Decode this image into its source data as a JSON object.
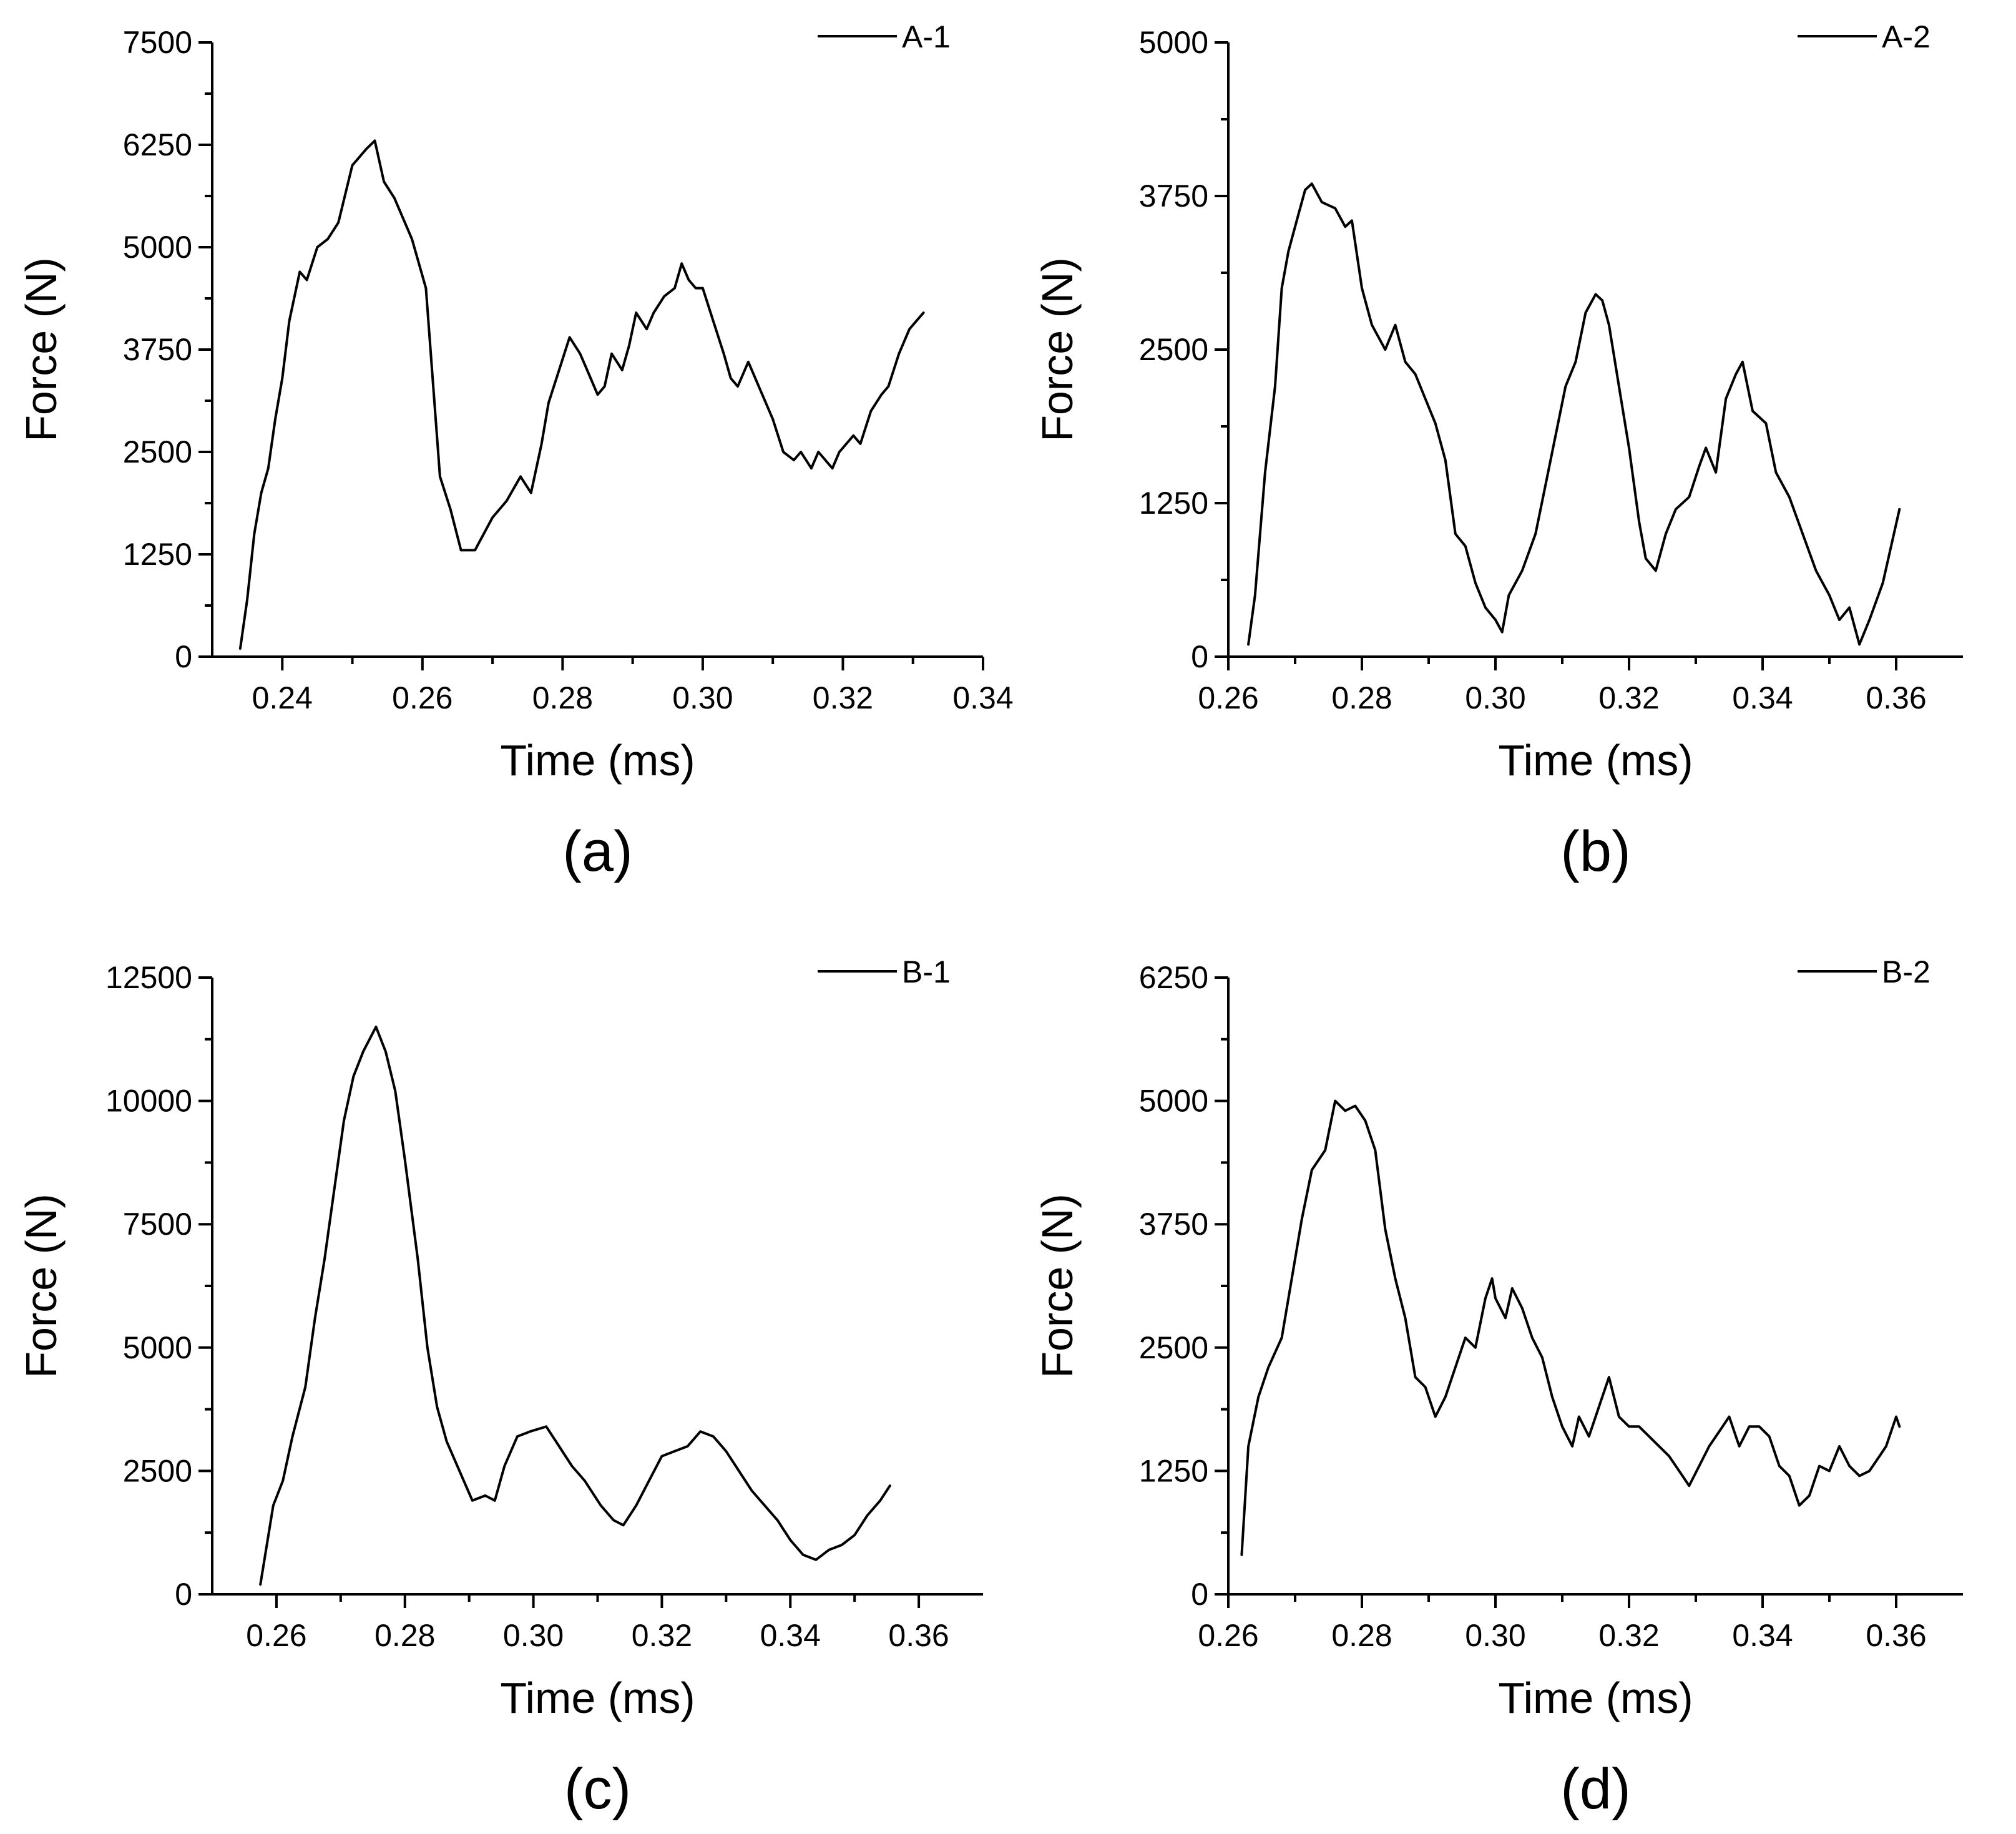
{
  "figure": {
    "background": "#ffffff",
    "line_color": "#000000"
  },
  "chart_data": [
    {
      "id": "a",
      "type": "line",
      "panel_label": "(a)",
      "xlabel": "Time (ms)",
      "ylabel": "Force (N)",
      "xlim": [
        0.23,
        0.34
      ],
      "ylim": [
        0,
        7500
      ],
      "xticks": [
        0.24,
        0.26,
        0.28,
        0.3,
        0.32,
        0.34
      ],
      "xtick_labels": [
        "0.24",
        "0.26",
        "0.28",
        "0.30",
        "0.32",
        "0.34"
      ],
      "yticks": [
        0,
        1250,
        2500,
        3750,
        5000,
        6250,
        7500
      ],
      "ytick_labels": [
        "0",
        "1250",
        "2500",
        "3750",
        "5000",
        "6250",
        "7500"
      ],
      "legend": {
        "label": "A-1",
        "position": "top-right"
      },
      "series": [
        {
          "name": "A-1",
          "x": [
            0.234,
            0.235,
            0.236,
            0.237,
            0.238,
            0.239,
            0.24,
            0.241,
            0.2425,
            0.2435,
            0.245,
            0.2465,
            0.248,
            0.25,
            0.251,
            0.252,
            0.2532,
            0.2545,
            0.256,
            0.2585,
            0.2605,
            0.2625,
            0.264,
            0.2655,
            0.2675,
            0.27,
            0.272,
            0.274,
            0.2755,
            0.277,
            0.278,
            0.2795,
            0.281,
            0.2825,
            0.2835,
            0.285,
            0.286,
            0.287,
            0.2885,
            0.2895,
            0.2905,
            0.292,
            0.293,
            0.2945,
            0.296,
            0.297,
            0.298,
            0.299,
            0.3,
            0.3015,
            0.303,
            0.304,
            0.305,
            0.3065,
            0.308,
            0.31,
            0.3115,
            0.313,
            0.314,
            0.3155,
            0.3165,
            0.3185,
            0.3195,
            0.3215,
            0.3225,
            0.324,
            0.3255,
            0.3265,
            0.328,
            0.3295,
            0.3305,
            0.3315
          ],
          "y": [
            100,
            700,
            1500,
            2000,
            2300,
            2900,
            3400,
            4100,
            4700,
            4600,
            5000,
            5100,
            5300,
            6000,
            6100,
            6200,
            6300,
            5800,
            5600,
            5100,
            4500,
            2200,
            1800,
            1300,
            1300,
            1700,
            1900,
            2200,
            2000,
            2600,
            3100,
            3500,
            3900,
            3700,
            3500,
            3200,
            3300,
            3700,
            3500,
            3800,
            4200,
            4000,
            4200,
            4400,
            4500,
            4800,
            4600,
            4500,
            4500,
            4100,
            3700,
            3400,
            3300,
            3600,
            3300,
            2900,
            2500,
            2400,
            2500,
            2300,
            2500,
            2300,
            2500,
            2700,
            2600,
            3000,
            3200,
            3300,
            3700,
            4000,
            4100,
            4200
          ]
        }
      ]
    },
    {
      "id": "b",
      "type": "line",
      "panel_label": "(b)",
      "xlabel": "Time (ms)",
      "ylabel": "Force (N)",
      "xlim": [
        0.26,
        0.37
      ],
      "ylim": [
        0,
        5000
      ],
      "xticks": [
        0.26,
        0.28,
        0.3,
        0.32,
        0.34,
        0.36
      ],
      "xtick_labels": [
        "0.26",
        "0.28",
        "0.30",
        "0.32",
        "0.34",
        "0.36"
      ],
      "yticks": [
        0,
        1250,
        2500,
        3750,
        5000
      ],
      "ytick_labels": [
        "0",
        "1250",
        "2500",
        "3750",
        "5000"
      ],
      "legend": {
        "label": "A-2",
        "position": "top-right"
      },
      "series": [
        {
          "name": "A-2",
          "x": [
            0.263,
            0.264,
            0.2655,
            0.267,
            0.268,
            0.269,
            0.2705,
            0.2715,
            0.2725,
            0.274,
            0.276,
            0.2775,
            0.2785,
            0.28,
            0.2815,
            0.2835,
            0.285,
            0.2865,
            0.288,
            0.2895,
            0.291,
            0.2925,
            0.294,
            0.2955,
            0.297,
            0.2985,
            0.3,
            0.301,
            0.302,
            0.304,
            0.306,
            0.3075,
            0.309,
            0.3105,
            0.312,
            0.3135,
            0.315,
            0.316,
            0.317,
            0.3185,
            0.32,
            0.3215,
            0.3225,
            0.324,
            0.3255,
            0.327,
            0.329,
            0.3305,
            0.3315,
            0.333,
            0.3345,
            0.336,
            0.337,
            0.3385,
            0.3405,
            0.342,
            0.344,
            0.346,
            0.348,
            0.35,
            0.3515,
            0.353,
            0.3545,
            0.356,
            0.358,
            0.3605
          ],
          "y": [
            100,
            500,
            1500,
            2200,
            3000,
            3300,
            3600,
            3800,
            3850,
            3700,
            3650,
            3500,
            3550,
            3000,
            2700,
            2500,
            2700,
            2400,
            2300,
            2100,
            1900,
            1600,
            1000,
            900,
            600,
            400,
            300,
            200,
            500,
            700,
            1000,
            1400,
            1800,
            2200,
            2400,
            2800,
            2950,
            2900,
            2700,
            2200,
            1700,
            1100,
            800,
            700,
            1000,
            1200,
            1300,
            1550,
            1700,
            1500,
            2100,
            2300,
            2400,
            2000,
            1900,
            1500,
            1300,
            1000,
            700,
            500,
            300,
            400,
            100,
            300,
            600,
            1200
          ]
        }
      ]
    },
    {
      "id": "c",
      "type": "line",
      "panel_label": "(c)",
      "xlabel": "Time (ms)",
      "ylabel": "Force (N)",
      "xlim": [
        0.25,
        0.37
      ],
      "ylim": [
        0,
        12500
      ],
      "xticks": [
        0.26,
        0.28,
        0.3,
        0.32,
        0.34,
        0.36
      ],
      "xtick_labels": [
        "0.26",
        "0.28",
        "0.30",
        "0.32",
        "0.34",
        "0.36"
      ],
      "yticks": [
        0,
        2500,
        5000,
        7500,
        10000,
        12500
      ],
      "ytick_labels": [
        "0",
        "2500",
        "5000",
        "7500",
        "10000",
        "12500"
      ],
      "legend": {
        "label": "B-1",
        "position": "top-right"
      },
      "series": [
        {
          "name": "B-1",
          "x": [
            0.2575,
            0.2585,
            0.2595,
            0.261,
            0.2625,
            0.2645,
            0.266,
            0.2675,
            0.269,
            0.2705,
            0.272,
            0.2735,
            0.2755,
            0.277,
            0.2785,
            0.28,
            0.282,
            0.2835,
            0.285,
            0.2865,
            0.2885,
            0.2905,
            0.2925,
            0.294,
            0.2955,
            0.2975,
            0.2995,
            0.302,
            0.304,
            0.306,
            0.308,
            0.3105,
            0.3125,
            0.314,
            0.316,
            0.318,
            0.32,
            0.322,
            0.324,
            0.326,
            0.328,
            0.33,
            0.332,
            0.334,
            0.336,
            0.338,
            0.34,
            0.342,
            0.344,
            0.346,
            0.348,
            0.35,
            0.352,
            0.354,
            0.3555
          ],
          "y": [
            200,
            1000,
            1800,
            2300,
            3200,
            4200,
            5600,
            6800,
            8200,
            9600,
            10500,
            11000,
            11500,
            11000,
            10200,
            8800,
            6800,
            5000,
            3800,
            3100,
            2500,
            1900,
            2000,
            1900,
            2600,
            3200,
            3300,
            3400,
            3000,
            2600,
            2300,
            1800,
            1500,
            1400,
            1800,
            2300,
            2800,
            2900,
            3000,
            3300,
            3200,
            2900,
            2500,
            2100,
            1800,
            1500,
            1100,
            800,
            700,
            900,
            1000,
            1200,
            1600,
            1900,
            2200
          ]
        }
      ]
    },
    {
      "id": "d",
      "type": "line",
      "panel_label": "(d)",
      "xlabel": "Time (ms)",
      "ylabel": "Force (N)",
      "xlim": [
        0.26,
        0.37
      ],
      "ylim": [
        0,
        6250
      ],
      "xticks": [
        0.26,
        0.28,
        0.3,
        0.32,
        0.34,
        0.36
      ],
      "xtick_labels": [
        "0.26",
        "0.28",
        "0.30",
        "0.32",
        "0.34",
        "0.36"
      ],
      "yticks": [
        0,
        1250,
        2500,
        3750,
        5000,
        6250
      ],
      "ytick_labels": [
        "0",
        "1250",
        "2500",
        "3750",
        "5000",
        "6250"
      ],
      "legend": {
        "label": "B-2",
        "position": "top-right"
      },
      "series": [
        {
          "name": "B-2",
          "x": [
            0.262,
            0.263,
            0.2645,
            0.266,
            0.268,
            0.2695,
            0.271,
            0.2725,
            0.2745,
            0.276,
            0.2775,
            0.279,
            0.2805,
            0.282,
            0.2835,
            0.285,
            0.2865,
            0.288,
            0.2895,
            0.291,
            0.2925,
            0.294,
            0.2955,
            0.297,
            0.2985,
            0.2995,
            0.3,
            0.3015,
            0.3025,
            0.304,
            0.3055,
            0.307,
            0.3085,
            0.31,
            0.3115,
            0.3125,
            0.314,
            0.3155,
            0.317,
            0.3185,
            0.32,
            0.3215,
            0.323,
            0.3245,
            0.326,
            0.3275,
            0.329,
            0.3305,
            0.332,
            0.3335,
            0.335,
            0.3365,
            0.338,
            0.3395,
            0.341,
            0.3425,
            0.344,
            0.3455,
            0.347,
            0.3485,
            0.35,
            0.3515,
            0.353,
            0.3545,
            0.356,
            0.3575,
            0.3585,
            0.36,
            0.3605
          ],
          "y": [
            400,
            1500,
            2000,
            2300,
            2600,
            3200,
            3800,
            4300,
            4500,
            5000,
            4900,
            4950,
            4800,
            4500,
            3700,
            3200,
            2800,
            2200,
            2100,
            1800,
            2000,
            2300,
            2600,
            2500,
            3000,
            3200,
            3000,
            2800,
            3100,
            2900,
            2600,
            2400,
            2000,
            1700,
            1500,
            1800,
            1600,
            1900,
            2200,
            1800,
            1700,
            1700,
            1600,
            1500,
            1400,
            1250,
            1100,
            1300,
            1500,
            1650,
            1800,
            1500,
            1700,
            1700,
            1600,
            1300,
            1200,
            900,
            1000,
            1300,
            1250,
            1500,
            1300,
            1200,
            1250,
            1400,
            1500,
            1800,
            1700
          ]
        }
      ]
    }
  ]
}
